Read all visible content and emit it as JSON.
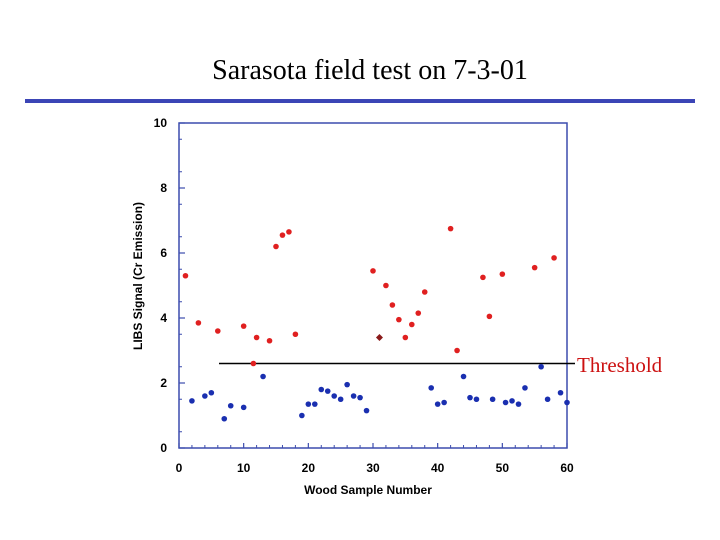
{
  "slide_title": "Sarasota field test on 7-3-01",
  "threshold_label": "Threshold",
  "colors": {
    "rule": "#3b45b6",
    "axis": "#3c4cae",
    "above": "#e02020",
    "below": "#1a2fb0",
    "flagged": "#8a1a1a"
  },
  "chart_data": {
    "type": "scatter",
    "xlabel": "Wood Sample Number",
    "ylabel": "LIBS Signal (Cr Emission)",
    "xlim": [
      0,
      60
    ],
    "ylim": [
      0,
      10
    ],
    "xticks": [
      0,
      10,
      20,
      30,
      40,
      50,
      60
    ],
    "yticks": [
      0,
      2,
      4,
      6,
      8,
      10
    ],
    "grid": false,
    "threshold": 2.6,
    "series": [
      {
        "color": "red",
        "points": [
          [
            1,
            5.3
          ],
          [
            3,
            3.85
          ],
          [
            6,
            3.6
          ],
          [
            10,
            3.75
          ],
          [
            11.5,
            2.6
          ],
          [
            12,
            3.4
          ],
          [
            14,
            3.3
          ],
          [
            15,
            6.2
          ],
          [
            16,
            6.55
          ],
          [
            17,
            6.65
          ],
          [
            18,
            3.5
          ],
          [
            30,
            5.45
          ],
          [
            32,
            5.0
          ],
          [
            33,
            4.4
          ],
          [
            34,
            3.95
          ],
          [
            35,
            3.4
          ],
          [
            36,
            3.8
          ],
          [
            37,
            4.15
          ],
          [
            38,
            4.8
          ],
          [
            42,
            6.75
          ],
          [
            43,
            3.0
          ],
          [
            47,
            5.25
          ],
          [
            48,
            4.05
          ],
          [
            50,
            5.35
          ],
          [
            55,
            5.55
          ],
          [
            58,
            5.85
          ]
        ]
      },
      {
        "color": "blue",
        "points": [
          [
            2,
            1.45
          ],
          [
            4,
            1.6
          ],
          [
            5,
            1.7
          ],
          [
            7,
            0.9
          ],
          [
            8,
            1.3
          ],
          [
            10,
            1.25
          ],
          [
            13,
            2.2
          ],
          [
            19,
            1.0
          ],
          [
            20,
            1.35
          ],
          [
            21,
            1.35
          ],
          [
            22,
            1.8
          ],
          [
            23,
            1.75
          ],
          [
            24,
            1.6
          ],
          [
            25,
            1.5
          ],
          [
            26,
            1.95
          ],
          [
            27,
            1.6
          ],
          [
            28,
            1.55
          ],
          [
            29,
            1.15
          ],
          [
            39,
            1.85
          ],
          [
            40,
            1.35
          ],
          [
            41,
            1.4
          ],
          [
            44,
            2.2
          ],
          [
            45,
            1.55
          ],
          [
            46,
            1.5
          ],
          [
            48.5,
            1.5
          ],
          [
            50.5,
            1.4
          ],
          [
            51.5,
            1.45
          ],
          [
            52.5,
            1.35
          ],
          [
            53.5,
            1.85
          ],
          [
            56,
            2.5
          ],
          [
            57,
            1.5
          ],
          [
            59,
            1.7
          ],
          [
            60,
            1.4
          ]
        ]
      },
      {
        "color": "dark red",
        "marker": "diamond",
        "points": [
          [
            31,
            3.4
          ]
        ]
      }
    ]
  }
}
